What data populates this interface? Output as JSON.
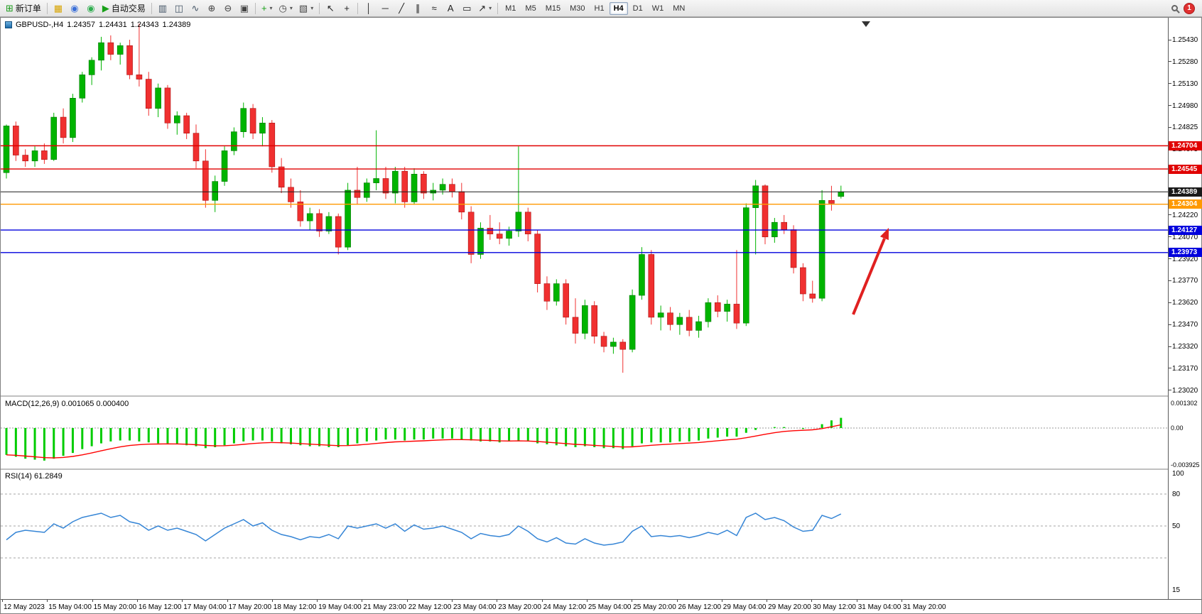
{
  "toolbar": {
    "items": [
      {
        "name": "new-order-button",
        "glyph": "⊞",
        "glyph_color": "#1a9a1a",
        "label": "新订单"
      },
      {
        "name": "sep"
      },
      {
        "name": "charts-window-icon",
        "glyph": "▦",
        "glyph_color": "#d8a400"
      },
      {
        "name": "market-watch-icon",
        "glyph": "◉",
        "glyph_color": "#3a6fd8"
      },
      {
        "name": "community-icon",
        "glyph": "◉",
        "glyph_color": "#2fae4f"
      },
      {
        "name": "auto-trading-button",
        "glyph": "▶",
        "glyph_color": "#18a018",
        "label": "自动交易"
      },
      {
        "name": "sep"
      },
      {
        "name": "bar-chart-icon",
        "glyph": "▥",
        "glyph_color": "#445566"
      },
      {
        "name": "candlestick-chart-icon",
        "glyph": "◫",
        "glyph_color": "#445566"
      },
      {
        "name": "line-chart-icon",
        "glyph": "∿",
        "glyph_color": "#445566"
      },
      {
        "name": "zoom-in-icon",
        "glyph": "⊕",
        "glyph_color": "#444444"
      },
      {
        "name": "zoom-out-icon",
        "glyph": "⊖",
        "glyph_color": "#444444"
      },
      {
        "name": "tile-windows-icon",
        "glyph": "▣",
        "glyph_color": "#444444"
      },
      {
        "name": "sep"
      },
      {
        "name": "indicators-icon",
        "glyph": "+",
        "glyph_color": "#18a018",
        "caret": true
      },
      {
        "name": "periods-icon",
        "glyph": "◷",
        "glyph_color": "#444444",
        "caret": true
      },
      {
        "name": "templates-icon",
        "glyph": "▧",
        "glyph_color": "#444444",
        "caret": true
      },
      {
        "name": "sep"
      },
      {
        "name": "cursor-icon",
        "glyph": "↖",
        "glyph_color": "#222222"
      },
      {
        "name": "crosshair-icon",
        "glyph": "+",
        "glyph_color": "#222222"
      },
      {
        "name": "sep"
      },
      {
        "name": "vertical-line-icon",
        "glyph": "│",
        "glyph_color": "#222222"
      },
      {
        "name": "horizontal-line-icon",
        "glyph": "─",
        "glyph_color": "#222222"
      },
      {
        "name": "trendline-icon",
        "glyph": "╱",
        "glyph_color": "#222222"
      },
      {
        "name": "equidistant-channel-icon",
        "glyph": "∥",
        "glyph_color": "#222222"
      },
      {
        "name": "fibonacci-icon",
        "glyph": "≈",
        "glyph_color": "#222222"
      },
      {
        "name": "text-icon",
        "glyph": "A",
        "glyph_color": "#222222"
      },
      {
        "name": "text-label-icon",
        "glyph": "▭",
        "glyph_color": "#222222"
      },
      {
        "name": "arrows-icon",
        "glyph": "↗",
        "glyph_color": "#222222",
        "caret": true
      },
      {
        "name": "sep"
      }
    ],
    "timeframes": [
      {
        "label": "M1",
        "active": false
      },
      {
        "label": "M5",
        "active": false
      },
      {
        "label": "M15",
        "active": false
      },
      {
        "label": "M30",
        "active": false
      },
      {
        "label": "H1",
        "active": false
      },
      {
        "label": "H4",
        "active": true
      },
      {
        "label": "D1",
        "active": false
      },
      {
        "label": "W1",
        "active": false
      },
      {
        "label": "MN",
        "active": false
      }
    ],
    "notification_count": "1"
  },
  "chart": {
    "symbol_tf": "GBPUSD-,H4",
    "open": "1.24357",
    "high": "1.24431",
    "low": "1.24343",
    "close": "1.24389"
  },
  "chart_data": {
    "type": "candlestick",
    "symbol": "GBPUSD-",
    "timeframe": "H4",
    "colors": {
      "up": "#00b400",
      "up_border": "#007700",
      "down": "#f03030",
      "down_border": "#aa1010",
      "macd_hist": "#00cc00",
      "macd_signal": "#ff0000",
      "rsi_line": "#3585d6",
      "arrow": "#e02020",
      "current_price_line": "#2b2b2b"
    },
    "price_axis": [
      "1.25430",
      "1.25280",
      "1.25130",
      "1.24980",
      "1.24825",
      "1.24675",
      "1.24520",
      "1.24370",
      "1.24220",
      "1.24070",
      "1.23920",
      "1.23770",
      "1.23620",
      "1.23470",
      "1.23320",
      "1.23170",
      "1.23020"
    ],
    "time_axis": [
      "12 May 2023",
      "15 May 04:00",
      "15 May 20:00",
      "16 May 12:00",
      "17 May 04:00",
      "17 May 20:00",
      "18 May 12:00",
      "19 May 04:00",
      "21 May 23:00",
      "22 May 12:00",
      "23 May 04:00",
      "23 May 20:00",
      "24 May 12:00",
      "25 May 04:00",
      "25 May 20:00",
      "26 May 12:00",
      "29 May 04:00",
      "29 May 20:00",
      "30 May 12:00",
      "31 May 04:00",
      "31 May 20:00"
    ],
    "levels": [
      {
        "price": 1.24704,
        "label": "1.24704",
        "color": "#e00000",
        "type": "resistance"
      },
      {
        "price": 1.24545,
        "label": "1.24545",
        "color": "#e00000",
        "type": "resistance"
      },
      {
        "price": 1.24389,
        "label": "1.24389",
        "color": "#1a1a1a",
        "type": "current"
      },
      {
        "price": 1.24304,
        "label": "1.24304",
        "color": "#ff9900",
        "type": "pivot"
      },
      {
        "price": 1.24127,
        "label": "1.24127",
        "color": "#0000dd",
        "type": "support"
      },
      {
        "price": 1.23973,
        "label": "1.23973",
        "color": "#0000dd",
        "type": "support"
      }
    ],
    "candles": [
      [
        1.2452,
        1.2485,
        1.2448,
        1.2484
      ],
      [
        1.2484,
        1.2487,
        1.246,
        1.2464
      ],
      [
        1.2464,
        1.2468,
        1.2456,
        1.246
      ],
      [
        1.246,
        1.247,
        1.2456,
        1.2467
      ],
      [
        1.2467,
        1.2472,
        1.2458,
        1.2461
      ],
      [
        1.2461,
        1.2493,
        1.246,
        1.249
      ],
      [
        1.249,
        1.2496,
        1.2472,
        1.2476
      ],
      [
        1.2476,
        1.2506,
        1.2473,
        1.2503
      ],
      [
        1.2503,
        1.2521,
        1.25,
        1.2519
      ],
      [
        1.2519,
        1.2531,
        1.2512,
        1.2529
      ],
      [
        1.2529,
        1.2545,
        1.2522,
        1.2541
      ],
      [
        1.2541,
        1.2546,
        1.2529,
        1.2533
      ],
      [
        1.2533,
        1.2541,
        1.2526,
        1.2539
      ],
      [
        1.2539,
        1.2543,
        1.2516,
        1.2519
      ],
      [
        1.2519,
        1.2554,
        1.2511,
        1.2516
      ],
      [
        1.2516,
        1.2521,
        1.2491,
        1.2496
      ],
      [
        1.2496,
        1.2513,
        1.249,
        1.251
      ],
      [
        1.251,
        1.2512,
        1.2482,
        1.2486
      ],
      [
        1.2486,
        1.2494,
        1.2478,
        1.2491
      ],
      [
        1.2491,
        1.2493,
        1.2475,
        1.2479
      ],
      [
        1.2479,
        1.2485,
        1.2455,
        1.246
      ],
      [
        1.246,
        1.2468,
        1.2428,
        1.2433
      ],
      [
        1.2433,
        1.245,
        1.2425,
        1.2446
      ],
      [
        1.2446,
        1.247,
        1.2443,
        1.2467
      ],
      [
        1.2467,
        1.2483,
        1.2464,
        1.248
      ],
      [
        1.248,
        1.25,
        1.2476,
        1.2496
      ],
      [
        1.2496,
        1.2499,
        1.2475,
        1.2479
      ],
      [
        1.2479,
        1.249,
        1.247,
        1.2486
      ],
      [
        1.2486,
        1.2488,
        1.2452,
        1.2456
      ],
      [
        1.2456,
        1.2462,
        1.2438,
        1.2442
      ],
      [
        1.2442,
        1.2448,
        1.2428,
        1.2432
      ],
      [
        1.2432,
        1.244,
        1.2415,
        1.2419
      ],
      [
        1.2419,
        1.2428,
        1.2413,
        1.2424
      ],
      [
        1.2424,
        1.2427,
        1.2408,
        1.2412
      ],
      [
        1.2412,
        1.2425,
        1.241,
        1.2422
      ],
      [
        1.2422,
        1.2424,
        1.2396,
        1.2401
      ],
      [
        1.2401,
        1.2445,
        1.2399,
        1.244
      ],
      [
        1.244,
        1.2456,
        1.243,
        1.2435
      ],
      [
        1.2435,
        1.2448,
        1.2432,
        1.2445
      ],
      [
        1.2445,
        1.2481,
        1.244,
        1.2448
      ],
      [
        1.2448,
        1.2456,
        1.2434,
        1.2438
      ],
      [
        1.2438,
        1.2456,
        1.2431,
        1.2453
      ],
      [
        1.2453,
        1.2456,
        1.2428,
        1.2432
      ],
      [
        1.2432,
        1.2455,
        1.243,
        1.2451
      ],
      [
        1.2451,
        1.2453,
        1.2434,
        1.2438
      ],
      [
        1.2438,
        1.2445,
        1.2433,
        1.244
      ],
      [
        1.244,
        1.2448,
        1.2437,
        1.2444
      ],
      [
        1.2444,
        1.2448,
        1.2435,
        1.2439
      ],
      [
        1.2439,
        1.2445,
        1.242,
        1.2425
      ],
      [
        1.2425,
        1.2429,
        1.239,
        1.2396
      ],
      [
        1.2396,
        1.2418,
        1.2393,
        1.2414
      ],
      [
        1.2414,
        1.2423,
        1.2406,
        1.241
      ],
      [
        1.241,
        1.2418,
        1.2403,
        1.2407
      ],
      [
        1.2407,
        1.2415,
        1.2402,
        1.2412
      ],
      [
        1.2412,
        1.247,
        1.2408,
        1.2425
      ],
      [
        1.2425,
        1.2428,
        1.2405,
        1.241
      ],
      [
        1.241,
        1.2413,
        1.237,
        1.2376
      ],
      [
        1.2376,
        1.2381,
        1.2358,
        1.2364
      ],
      [
        1.2364,
        1.2379,
        1.2361,
        1.2376
      ],
      [
        1.2376,
        1.2379,
        1.2348,
        1.2353
      ],
      [
        1.2353,
        1.2366,
        1.2335,
        1.2342
      ],
      [
        1.2342,
        1.2365,
        1.2338,
        1.2361
      ],
      [
        1.2361,
        1.2364,
        1.2335,
        1.234
      ],
      [
        1.234,
        1.2343,
        1.2329,
        1.2333
      ],
      [
        1.2333,
        1.2339,
        1.2328,
        1.2336
      ],
      [
        1.2336,
        1.2338,
        1.2315,
        1.2331
      ],
      [
        1.2331,
        1.2372,
        1.2329,
        1.2368
      ],
      [
        1.2368,
        1.2401,
        1.2365,
        1.2396
      ],
      [
        1.2396,
        1.2399,
        1.2348,
        1.2353
      ],
      [
        1.2353,
        1.2361,
        1.2344,
        1.2356
      ],
      [
        1.2356,
        1.236,
        1.2344,
        1.2348
      ],
      [
        1.2348,
        1.2356,
        1.2341,
        1.2353
      ],
      [
        1.2353,
        1.2358,
        1.234,
        1.2344
      ],
      [
        1.2344,
        1.2354,
        1.2339,
        1.235
      ],
      [
        1.235,
        1.2366,
        1.2346,
        1.2363
      ],
      [
        1.2363,
        1.2368,
        1.2353,
        1.2357
      ],
      [
        1.2357,
        1.2365,
        1.235,
        1.2362
      ],
      [
        1.2362,
        1.2399,
        1.2345,
        1.2349
      ],
      [
        1.2349,
        1.2431,
        1.2347,
        1.2428
      ],
      [
        1.2428,
        1.2447,
        1.2396,
        1.2443
      ],
      [
        1.2443,
        1.2444,
        1.2403,
        1.2408
      ],
      [
        1.2408,
        1.2421,
        1.2404,
        1.2418
      ],
      [
        1.2418,
        1.2423,
        1.241,
        1.2413
      ],
      [
        1.2413,
        1.2416,
        1.2383,
        1.2387
      ],
      [
        1.2387,
        1.239,
        1.2364,
        1.2369
      ],
      [
        1.2369,
        1.2378,
        1.2363,
        1.2366
      ],
      [
        1.2366,
        1.244,
        1.2364,
        1.2433
      ],
      [
        1.2433,
        1.2443,
        1.2426,
        1.2431
      ],
      [
        1.24357,
        1.24431,
        1.24343,
        1.24389
      ]
    ],
    "macd": {
      "label": "MACD(12,26,9) 0.001065 0.000400",
      "axis": [
        "0.001302",
        "0.00",
        "-0.003925"
      ],
      "values": [
        -0.0028,
        -0.003,
        -0.0032,
        -0.0033,
        -0.0034,
        -0.0032,
        -0.0029,
        -0.0026,
        -0.0022,
        -0.0019,
        -0.0016,
        -0.0014,
        -0.0013,
        -0.0013,
        -0.0014,
        -0.0015,
        -0.0016,
        -0.0016,
        -0.0017,
        -0.0018,
        -0.0019,
        -0.0021,
        -0.002,
        -0.0018,
        -0.0016,
        -0.0014,
        -0.0013,
        -0.0013,
        -0.0014,
        -0.0016,
        -0.0017,
        -0.0018,
        -0.0019,
        -0.0019,
        -0.002,
        -0.002,
        -0.0018,
        -0.0016,
        -0.0014,
        -0.0013,
        -0.0012,
        -0.0012,
        -0.0013,
        -0.0012,
        -0.0012,
        -0.0011,
        -0.0011,
        -0.0011,
        -0.0012,
        -0.0013,
        -0.0014,
        -0.0014,
        -0.0015,
        -0.0014,
        -0.0013,
        -0.0014,
        -0.0016,
        -0.0017,
        -0.0018,
        -0.0019,
        -0.002,
        -0.0019,
        -0.002,
        -0.0021,
        -0.0021,
        -0.0022,
        -0.0019,
        -0.0016,
        -0.0015,
        -0.0015,
        -0.0015,
        -0.0014,
        -0.0014,
        -0.0013,
        -0.0011,
        -0.001,
        -0.0009,
        -0.0009,
        -0.0005,
        -0.0002,
        0.0,
        0.0001,
        0.0001,
        0.0,
        -0.0001,
        0.0,
        0.0004,
        0.0008,
        0.001065
      ]
    },
    "rsi": {
      "label": "RSI(14) 61.2849",
      "axis": [
        "100",
        "80",
        "50",
        "15"
      ],
      "dashed_levels": [
        80,
        50,
        20
      ],
      "values": [
        37,
        44,
        46,
        45,
        44,
        52,
        48,
        54,
        58,
        60,
        62,
        58,
        60,
        54,
        52,
        46,
        50,
        46,
        48,
        45,
        42,
        36,
        42,
        48,
        52,
        56,
        50,
        53,
        46,
        42,
        40,
        37,
        40,
        39,
        42,
        38,
        50,
        48,
        50,
        52,
        48,
        52,
        45,
        51,
        47,
        48,
        50,
        47,
        44,
        38,
        43,
        41,
        40,
        42,
        50,
        45,
        38,
        35,
        39,
        34,
        33,
        38,
        34,
        32,
        33,
        35,
        45,
        50,
        40,
        41,
        40,
        41,
        39,
        41,
        44,
        42,
        46,
        41,
        58,
        62,
        56,
        58,
        55,
        49,
        45,
        46,
        60,
        57,
        61.28
      ]
    },
    "annotation_arrow": {
      "direction": "up",
      "color": "#e02020"
    }
  }
}
